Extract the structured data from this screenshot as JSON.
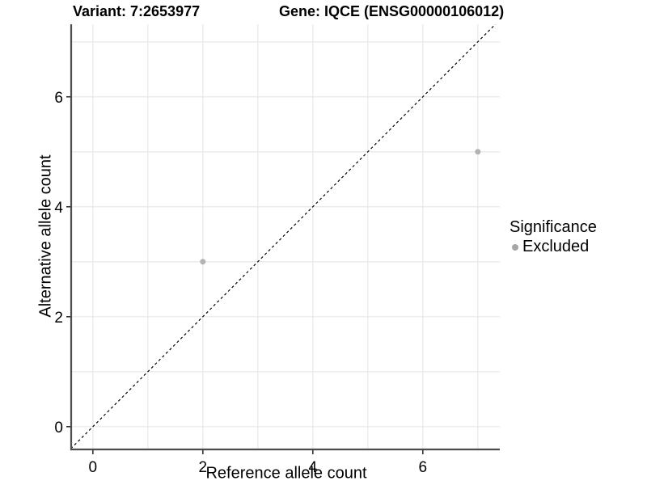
{
  "chart_data": {
    "type": "scatter",
    "title_variant": "Variant: 7:2653977",
    "title_gene": "Gene: IQCE (ENSG00000106012)",
    "xlabel": "Reference allele count",
    "ylabel": "Alternative allele count",
    "xlim": [
      -0.38,
      7.4
    ],
    "ylim": [
      -0.4,
      7.32
    ],
    "xticks": [
      0,
      2,
      4,
      6
    ],
    "yticks": [
      0,
      2,
      4,
      6
    ],
    "grid_interval": 1,
    "series": [
      {
        "name": "Excluded",
        "color": "#b3b3b3",
        "point_radius": 3.5,
        "points": [
          {
            "x": 2,
            "y": 3
          },
          {
            "x": 7,
            "y": 5
          }
        ]
      }
    ],
    "identity_line": {
      "slope": 1,
      "intercept": 0,
      "style": "dashed",
      "color": "#000000"
    },
    "legend": {
      "position": "right",
      "title": "Significance",
      "entries": [
        {
          "label": "Excluded",
          "color": "#a6a6a6"
        }
      ]
    },
    "colors": {
      "background": "#ffffff",
      "gridline": "#e8e8e8",
      "axis_line": "#4d4d4d",
      "tick_mark": "#333333",
      "text": "#000000"
    }
  }
}
